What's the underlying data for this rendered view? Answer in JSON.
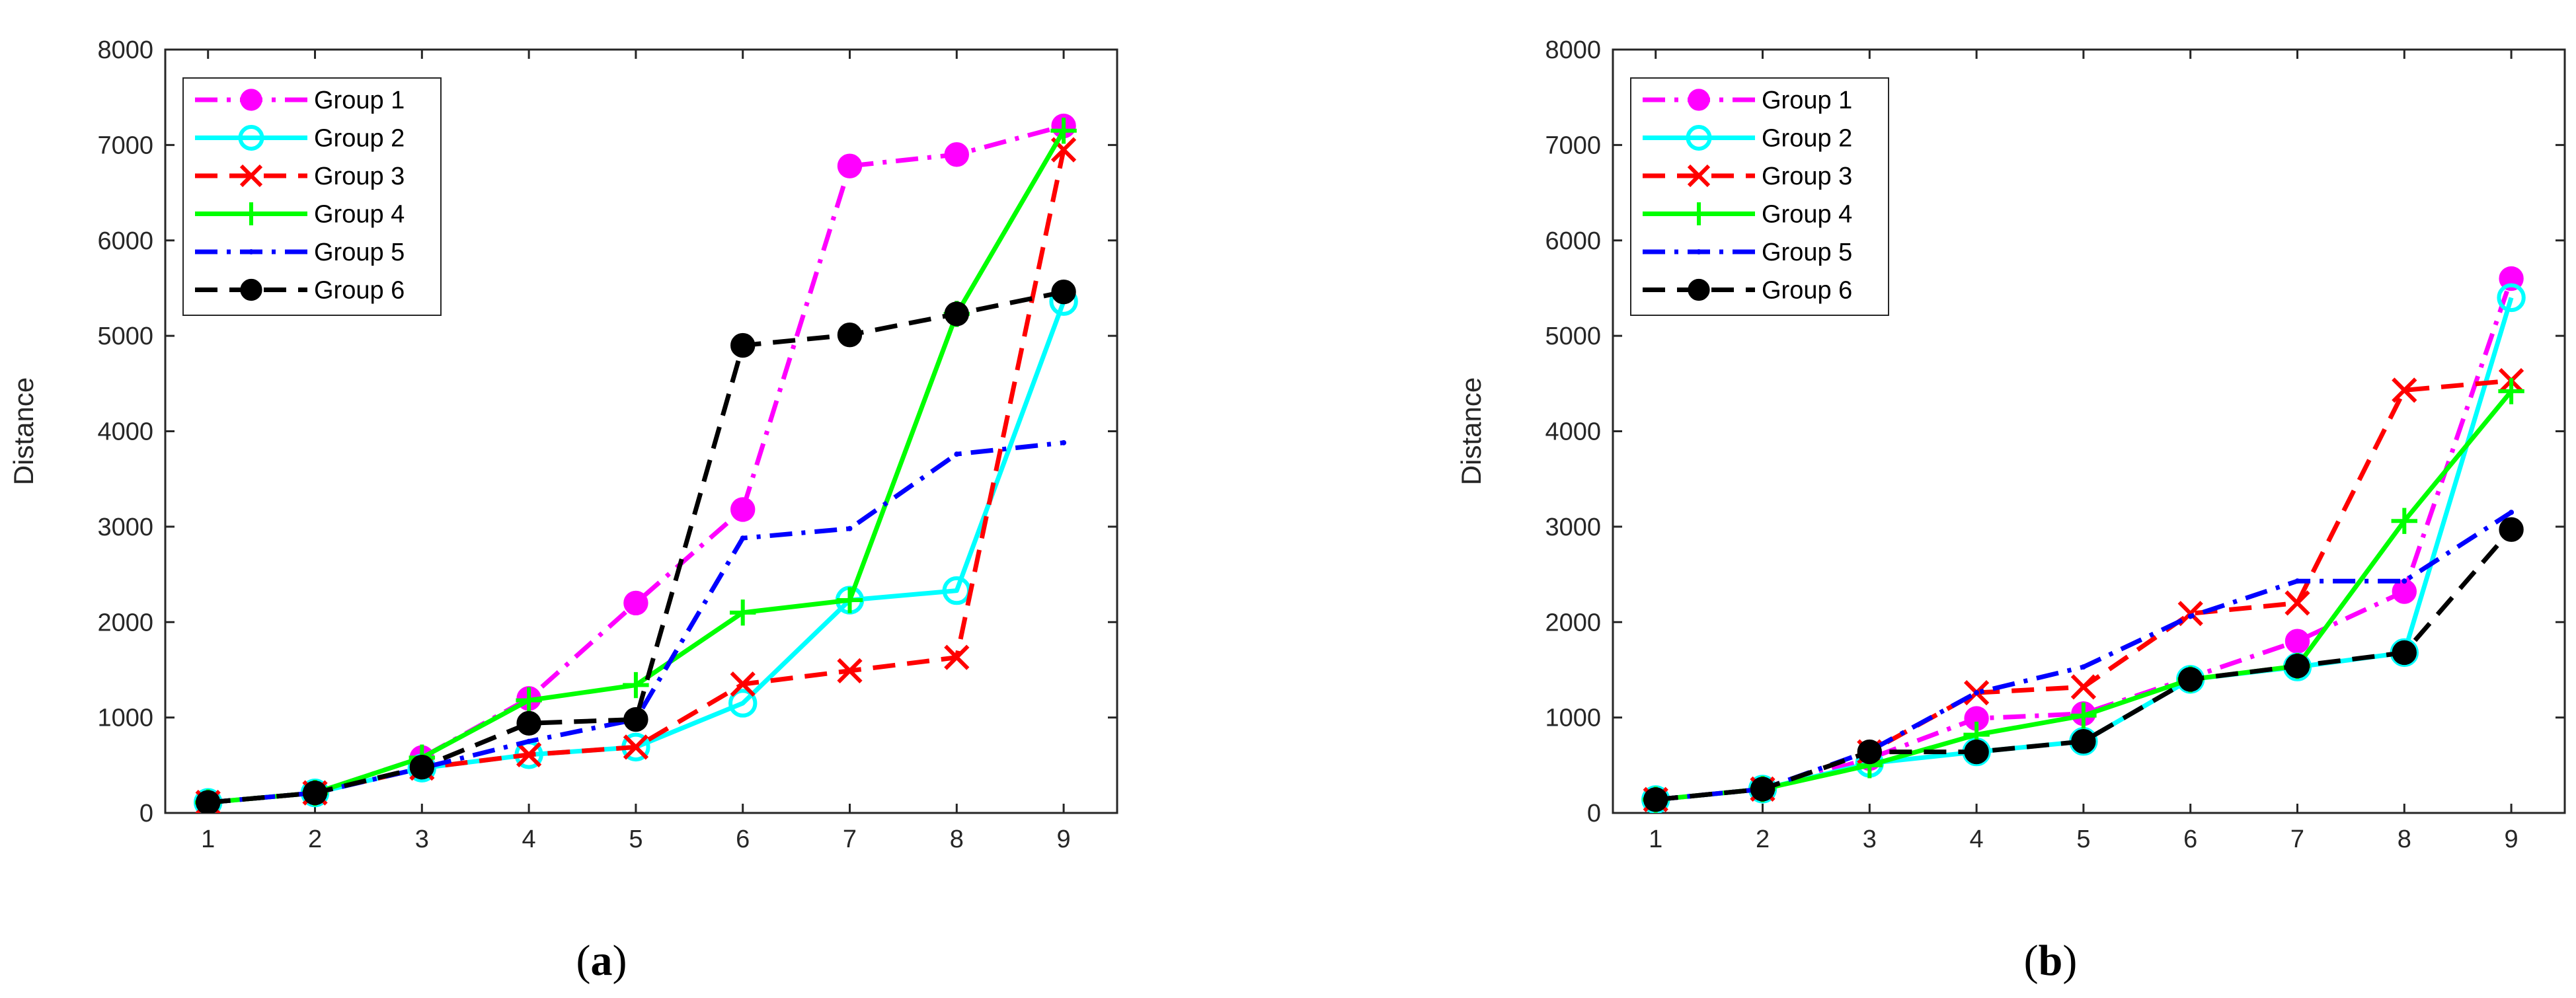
{
  "figure": {
    "panel_labels": [
      {
        "open": "(",
        "letter": "a",
        "close": ")"
      },
      {
        "open": "(",
        "letter": "b",
        "close": ")"
      }
    ]
  },
  "chart_data": [
    {
      "type": "line",
      "panel": "a",
      "title": "",
      "xlabel": "",
      "ylabel": "Distance",
      "x": [
        1,
        2,
        3,
        4,
        5,
        6,
        7,
        8,
        9
      ],
      "xticks": [
        "1",
        "2",
        "3",
        "4",
        "5",
        "6",
        "7",
        "8",
        "9"
      ],
      "xlim": [
        0.6,
        9.5
      ],
      "ylim": [
        0,
        8000
      ],
      "yticks": [
        "0",
        "1000",
        "2000",
        "3000",
        "4000",
        "5000",
        "6000",
        "7000",
        "8000"
      ],
      "grid": false,
      "legend_position": "top-left",
      "series": [
        {
          "name": "Group 1",
          "color": "#ff00ff",
          "dash": "dash-dot",
          "marker": "filled-circle",
          "values": [
            110,
            210,
            580,
            1200,
            2200,
            3180,
            6780,
            6900,
            7200
          ]
        },
        {
          "name": "Group 2",
          "color": "#00ffff",
          "dash": "solid",
          "marker": "open-circle",
          "values": [
            110,
            210,
            470,
            610,
            690,
            1150,
            2230,
            2330,
            5360
          ]
        },
        {
          "name": "Group 3",
          "color": "#ff0000",
          "dash": "dashed",
          "marker": "x",
          "values": [
            110,
            210,
            470,
            610,
            690,
            1350,
            1490,
            1630,
            6950
          ]
        },
        {
          "name": "Group 4",
          "color": "#00ff00",
          "dash": "solid",
          "marker": "plus",
          "values": [
            110,
            210,
            580,
            1180,
            1340,
            2100,
            2230,
            5230,
            7150
          ]
        },
        {
          "name": "Group 5",
          "color": "#0000ff",
          "dash": "dash-dot",
          "marker": "point",
          "values": [
            110,
            210,
            470,
            750,
            980,
            2880,
            2980,
            3760,
            3880
          ]
        },
        {
          "name": "Group 6",
          "color": "#000000",
          "dash": "dashed",
          "marker": "filled-circle",
          "values": [
            110,
            210,
            480,
            940,
            980,
            4900,
            5010,
            5230,
            5460
          ]
        }
      ]
    },
    {
      "type": "line",
      "panel": "b",
      "title": "",
      "xlabel": "",
      "ylabel": "Distance",
      "x": [
        1,
        2,
        3,
        4,
        5,
        6,
        7,
        8,
        9
      ],
      "xticks": [
        "1",
        "2",
        "3",
        "4",
        "5",
        "6",
        "7",
        "8",
        "9"
      ],
      "xlim": [
        0.6,
        9.5
      ],
      "ylim": [
        0,
        8000
      ],
      "yticks": [
        "0",
        "1000",
        "2000",
        "3000",
        "4000",
        "5000",
        "6000",
        "7000",
        "8000"
      ],
      "grid": false,
      "legend_position": "top-left",
      "series": [
        {
          "name": "Group 1",
          "color": "#ff00ff",
          "dash": "dash-dot",
          "marker": "filled-circle",
          "values": [
            140,
            250,
            570,
            990,
            1040,
            1420,
            1800,
            2320,
            5600
          ]
        },
        {
          "name": "Group 2",
          "color": "#00ffff",
          "dash": "solid",
          "marker": "open-circle",
          "values": [
            140,
            250,
            520,
            640,
            750,
            1400,
            1530,
            1680,
            5400
          ]
        },
        {
          "name": "Group 3",
          "color": "#ff0000",
          "dash": "dashed",
          "marker": "x",
          "values": [
            140,
            250,
            640,
            1260,
            1320,
            2090,
            2200,
            4430,
            4530
          ]
        },
        {
          "name": "Group 4",
          "color": "#00ff00",
          "dash": "solid",
          "marker": "plus",
          "values": [
            140,
            250,
            500,
            820,
            1020,
            1400,
            1540,
            3060,
            4420
          ]
        },
        {
          "name": "Group 5",
          "color": "#0000ff",
          "dash": "dash-dot",
          "marker": "point",
          "values": [
            140,
            250,
            650,
            1260,
            1530,
            2060,
            2430,
            2430,
            3150
          ]
        },
        {
          "name": "Group 6",
          "color": "#000000",
          "dash": "dashed",
          "marker": "filled-circle",
          "values": [
            140,
            250,
            640,
            640,
            750,
            1400,
            1540,
            1680,
            2970
          ]
        }
      ]
    }
  ]
}
